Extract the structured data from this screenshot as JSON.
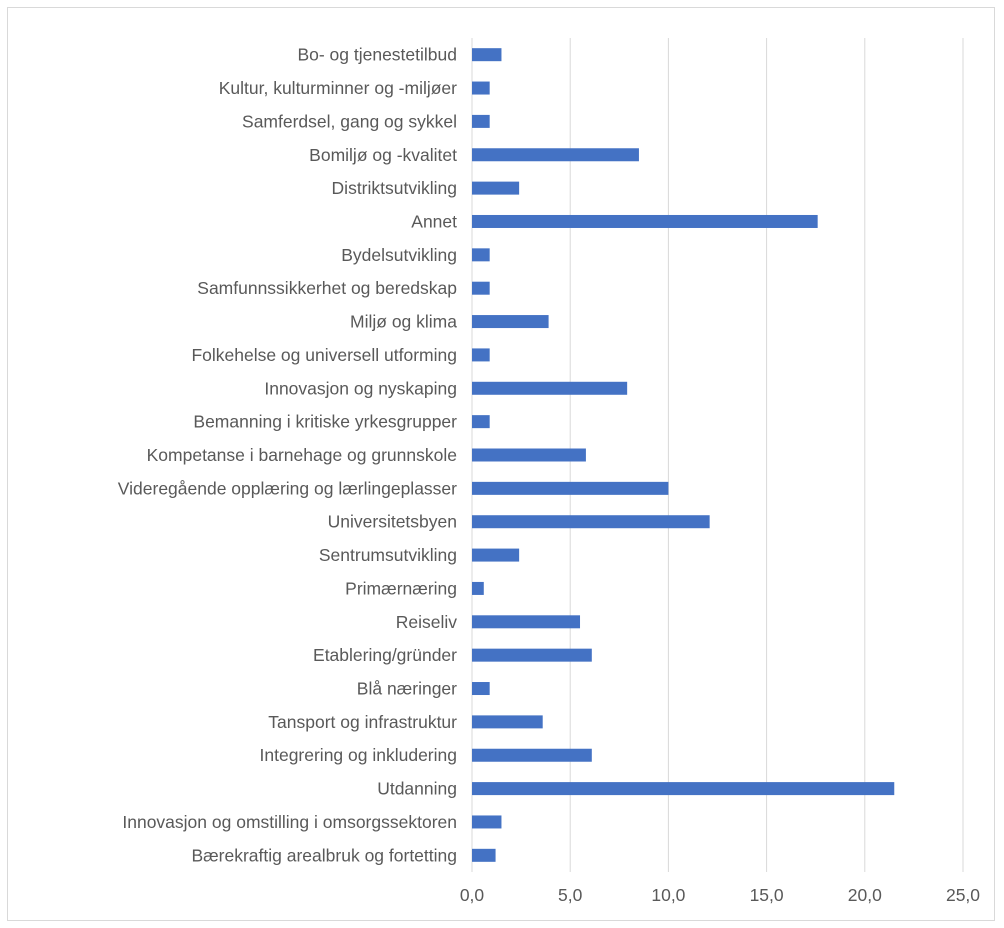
{
  "chart_data": {
    "type": "bar",
    "orientation": "horizontal",
    "title": "",
    "xlabel": "",
    "ylabel": "",
    "xlim": [
      0,
      25
    ],
    "grid": "vertical",
    "legend": "none",
    "bar_color": "#4472c4",
    "categories": [
      "Bo- og tjenestetilbud",
      "Kultur, kulturminner og -miljøer",
      "Samferdsel, gang og sykkel",
      "Bomiljø og -kvalitet",
      "Distriktsutvikling",
      "Annet",
      "Bydelsutvikling",
      "Samfunnssikkerhet og beredskap",
      "Miljø og klima",
      "Folkehelse og universell utforming",
      "Innovasjon og nyskaping",
      "Bemanning i kritiske yrkesgrupper",
      "Kompetanse i barnehage og grunnskole",
      "Videregående opplæring og lærlingeplasser",
      "Universitetsbyen",
      "Sentrumsutvikling",
      "Primærnæring",
      "Reiseliv",
      "Etablering/gründer",
      "Blå næringer",
      "Tansport og infrastruktur",
      "Integrering og inkludering",
      "Utdanning",
      "Innovasjon og omstilling i omsorgssektoren",
      "Bærekraftig arealbruk og fortetting"
    ],
    "values": [
      1.5,
      0.9,
      0.9,
      8.5,
      2.4,
      17.6,
      0.9,
      0.9,
      3.9,
      0.9,
      7.9,
      0.9,
      5.8,
      10.0,
      12.1,
      2.4,
      0.6,
      5.5,
      6.1,
      0.9,
      3.6,
      6.1,
      21.5,
      1.5,
      1.2
    ],
    "x_ticks": [
      "0,0",
      "5,0",
      "10,0",
      "15,0",
      "20,0",
      "25,0"
    ]
  }
}
